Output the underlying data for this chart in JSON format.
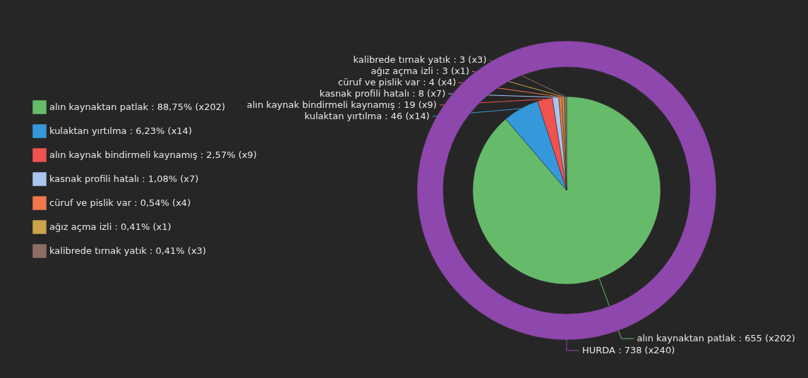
{
  "chart_data": {
    "type": "pie",
    "legend": "left",
    "categories": [
      "alın kaynaktan patlak : 88,75% (x202)",
      "kulaktan yırtılma : 6,23% (x14)",
      "alın kaynak bindirmeli kaynamış : 2,57% (x9)",
      "kasnak profili hatalı : 1,08% (x7)",
      "cüruf ve pislik var : 0,54% (x4)",
      "ağız açma izli : 0,41% (x1)",
      "kalibrede tırnak yatık : 0,41% (x3)"
    ],
    "series": [
      {
        "type": "pie",
        "values": [
          655,
          46,
          19,
          8,
          4,
          3,
          3
        ],
        "colors": [
          "#66bb6a",
          "#3498db",
          "#ef5350",
          "#a9c5ee",
          "#f0774a",
          "#c9a449",
          "#8d6e63"
        ],
        "value_labels": [
          "alın kaynaktan patlak : 655 (x202)",
          "kulaktan yırtılma : 46 (x14)",
          "alın kaynak bindirmeli kaynamış : 19 (x9)",
          "kasnak profili hatalı : 8 (x7)",
          "cüruf ve pislik var : 4 (x4)",
          "ağız açma izli : 3 (x1)",
          "kalibrede tırnak yatık : 3 (x3)"
        ]
      },
      {
        "type": "donut",
        "values": [
          738,
          null,
          null,
          null,
          null,
          null,
          null
        ],
        "color": "#8e47ad",
        "value_labels": [
          "HURDA : 738 (x240)",
          null,
          null,
          null,
          null,
          null,
          null
        ]
      }
    ]
  }
}
